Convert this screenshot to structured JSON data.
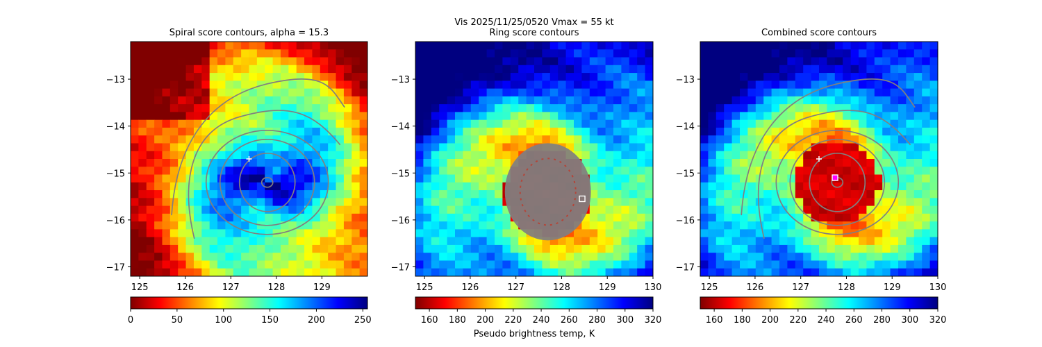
{
  "suptitle": "Vis  2025/11/25/0520    Vmax = 55 kt",
  "colorbar_label": "Pseudo brightness temp, K",
  "colors": {
    "contour": "#808080",
    "marker": "#ffffff",
    "best_center": "#ff00ff"
  },
  "chart_data": [
    {
      "type": "heatmap",
      "title": "Spiral score contours, alpha = 15.3",
      "xlim": [
        124.8,
        130.0
      ],
      "ylim": [
        -17.2,
        -12.2
      ],
      "xticks": [
        "125",
        "126",
        "127",
        "128",
        "129"
      ],
      "yticks": [
        "−13",
        "−14",
        "−15",
        "−16",
        "−17"
      ],
      "colormap": "jet_r",
      "colorbar_range": [
        0,
        255
      ],
      "colorbar_ticks": [
        "0",
        "50",
        "100",
        "150",
        "200",
        "250"
      ],
      "plus_marker": [
        127.4,
        -14.7
      ],
      "contour_center": [
        127.8,
        -15.2
      ]
    },
    {
      "type": "heatmap",
      "title": "Ring score contours",
      "xlim": [
        124.8,
        130.0
      ],
      "ylim": [
        -17.2,
        -12.2
      ],
      "xticks": [
        "125",
        "126",
        "127",
        "128",
        "129",
        "130"
      ],
      "yticks": [
        "−13",
        "−14",
        "−15",
        "−16",
        "−17"
      ],
      "colormap": "jet_r",
      "colorbar_range": [
        150,
        320
      ],
      "colorbar_ticks": [
        "160",
        "180",
        "200",
        "220",
        "240",
        "260",
        "280",
        "300",
        "320"
      ],
      "square_marker": [
        128.45,
        -15.55
      ],
      "ring_center": [
        127.7,
        -15.4
      ]
    },
    {
      "type": "heatmap",
      "title": "Combined score contours",
      "xlim": [
        124.8,
        130.0
      ],
      "ylim": [
        -17.2,
        -12.2
      ],
      "xticks": [
        "125",
        "126",
        "127",
        "128",
        "129",
        "130"
      ],
      "yticks": [
        "−13",
        "−14",
        "−15",
        "−16",
        "−17"
      ],
      "colormap": "jet_r",
      "colorbar_range": [
        150,
        320
      ],
      "colorbar_ticks": [
        "160",
        "180",
        "200",
        "220",
        "240",
        "260",
        "280",
        "300",
        "320"
      ],
      "plus_marker": [
        127.4,
        -14.7
      ],
      "square_marker": [
        127.75,
        -15.1
      ],
      "contour_center": [
        127.8,
        -15.2
      ]
    }
  ]
}
